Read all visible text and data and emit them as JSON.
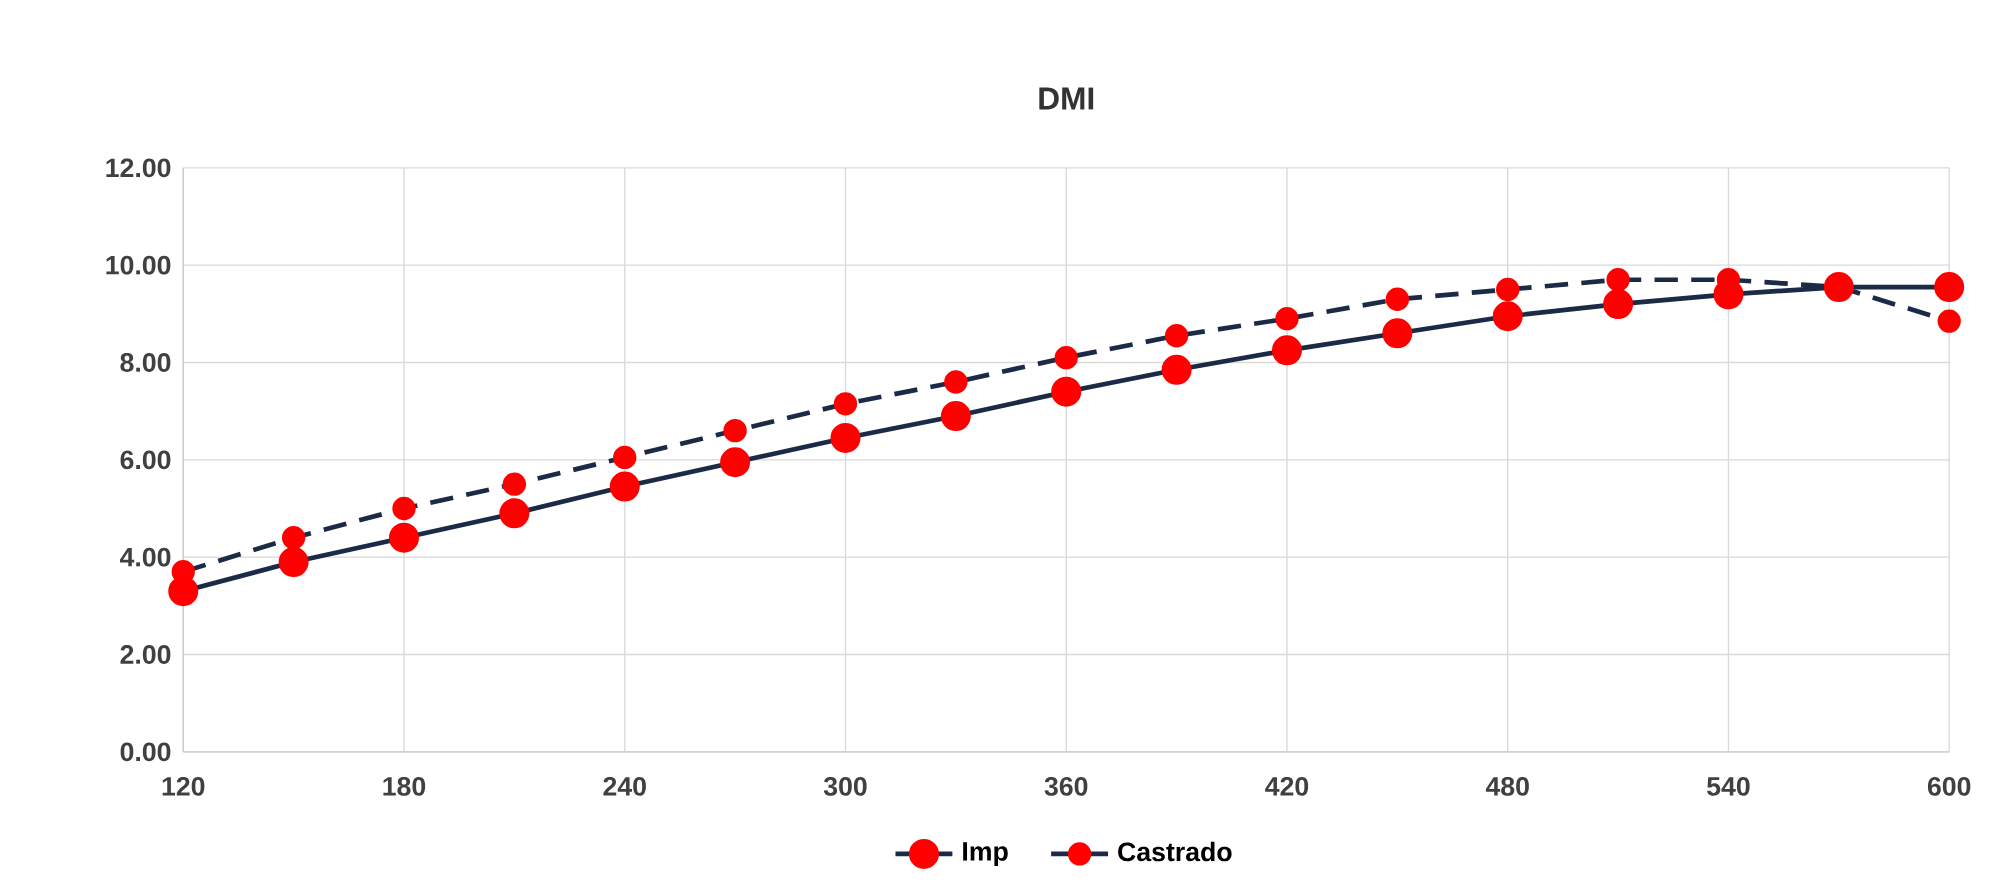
{
  "chart_data": {
    "type": "line",
    "title": "DMI",
    "x": [
      120,
      150,
      180,
      210,
      240,
      270,
      300,
      330,
      360,
      390,
      420,
      450,
      480,
      510,
      540,
      570,
      600
    ],
    "series": [
      {
        "name": "Imp",
        "color": "#1b2a47",
        "line_style": "solid",
        "values": [
          3.3,
          3.9,
          4.4,
          4.9,
          5.45,
          5.95,
          6.45,
          6.9,
          7.4,
          7.85,
          8.25,
          8.6,
          8.95,
          9.2,
          9.4,
          9.55,
          9.55
        ]
      },
      {
        "name": "Castrado",
        "color": "#1b2a47",
        "line_style": "dashed",
        "values": [
          3.7,
          4.4,
          5.0,
          5.5,
          6.05,
          6.6,
          7.15,
          7.6,
          8.1,
          8.55,
          8.9,
          9.3,
          9.5,
          9.7,
          9.7,
          9.55,
          8.85
        ]
      }
    ],
    "xlim": [
      120,
      600
    ],
    "ylim": [
      0,
      12
    ],
    "xticks": [
      120,
      180,
      240,
      300,
      360,
      420,
      480,
      540,
      600
    ],
    "yticks": [
      {
        "value": 0,
        "label": "0.00"
      },
      {
        "value": 2,
        "label": "2.00"
      },
      {
        "value": 4,
        "label": "4.00"
      },
      {
        "value": 6,
        "label": "6.00"
      },
      {
        "value": 8,
        "label": "8.00"
      },
      {
        "value": 10,
        "label": "10.00"
      },
      {
        "value": 12,
        "label": "12.00"
      }
    ],
    "grid": true,
    "legend": "bottom",
    "marker": "circle"
  }
}
